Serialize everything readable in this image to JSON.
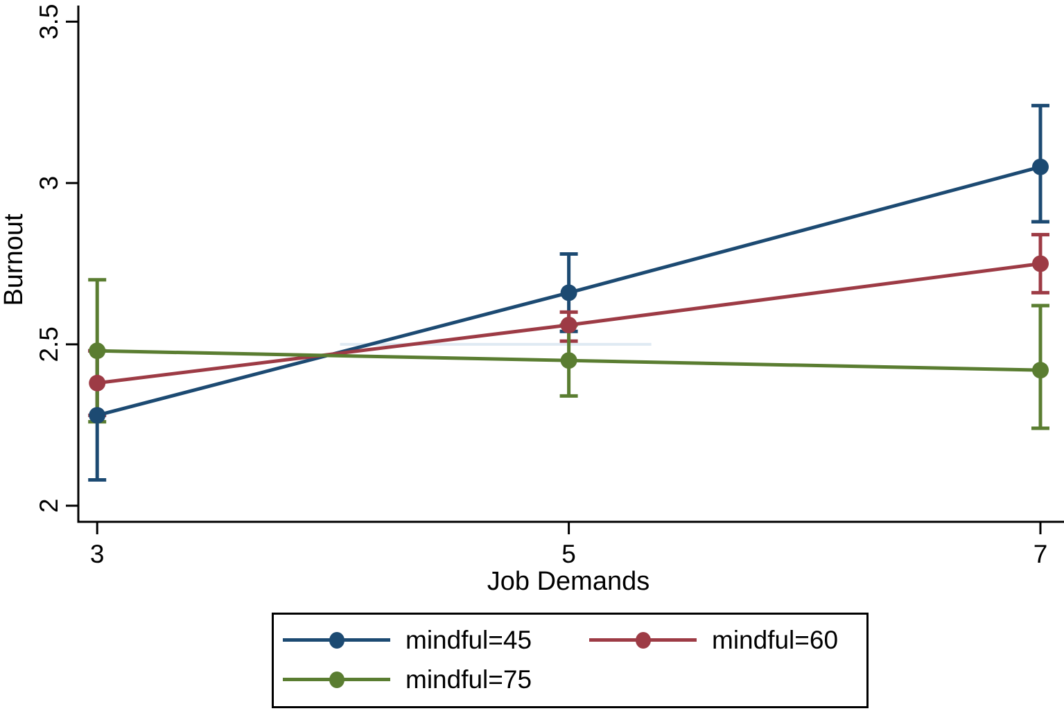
{
  "chart_data": {
    "type": "line",
    "title": "",
    "xlabel": "Job Demands",
    "ylabel": "Burnout",
    "x": [
      3,
      5,
      7
    ],
    "x_ticks": [
      3,
      5,
      7
    ],
    "y_ticks": [
      2,
      2.5,
      3,
      3.5
    ],
    "xlim": [
      2.92,
      7.1
    ],
    "ylim": [
      1.95,
      3.55
    ],
    "grid": false,
    "legend_position": "bottom",
    "background": "#ffffff",
    "axis_color": "#000000",
    "series": [
      {
        "name": "mindful=45",
        "color": "#1c4a72",
        "values": [
          2.28,
          2.66,
          3.05
        ],
        "ci_low": [
          2.08,
          2.54,
          2.88
        ],
        "ci_high": [
          2.48,
          2.78,
          3.24
        ]
      },
      {
        "name": "mindful=60",
        "color": "#9d3b45",
        "values": [
          2.38,
          2.56,
          2.75
        ],
        "ci_low": [
          2.28,
          2.51,
          2.66
        ],
        "ci_high": [
          2.48,
          2.6,
          2.84
        ]
      },
      {
        "name": "mindful=75",
        "color": "#5a7d31",
        "values": [
          2.48,
          2.45,
          2.42
        ],
        "ci_low": [
          2.26,
          2.34,
          2.24
        ],
        "ci_high": [
          2.7,
          2.56,
          2.62
        ]
      }
    ],
    "ref_line": {
      "y": 2.5,
      "x_start": 4.03,
      "x_end": 5.35,
      "color": "#dfeaf3"
    }
  }
}
